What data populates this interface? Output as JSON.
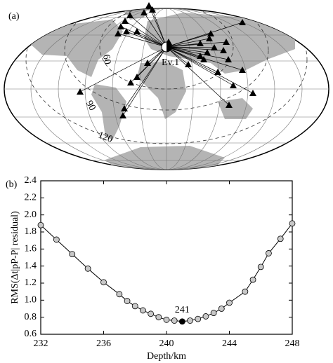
{
  "chart_data": [
    {
      "type": "map",
      "label": "(a)",
      "event": "Ev.1",
      "distance_labels": [
        60,
        90,
        120
      ]
    },
    {
      "type": "line",
      "label": "(b)",
      "xlabel": "Depth/km",
      "ylabel": "RMS(Δt|pP-P| residual)",
      "x": [
        232,
        233,
        234,
        235,
        236,
        237,
        237.5,
        238,
        238.5,
        239,
        239.5,
        240,
        240.5,
        241,
        241.5,
        242,
        242.5,
        243,
        243.5,
        244,
        245,
        245.5,
        246,
        246.5,
        247.25,
        248
      ],
      "values": [
        1.88,
        1.71,
        1.54,
        1.37,
        1.21,
        1.07,
        0.99,
        0.93,
        0.88,
        0.84,
        0.8,
        0.77,
        0.76,
        0.75,
        0.76,
        0.78,
        0.81,
        0.85,
        0.9,
        0.97,
        1.1,
        1.24,
        1.39,
        1.55,
        1.72,
        1.9
      ],
      "color": "#c8c8c8",
      "highlight_color": "#000000",
      "annotation": "241",
      "xlim": [
        232,
        248
      ],
      "xticks": [
        232,
        236,
        240,
        244,
        248
      ],
      "ylim": [
        0.6,
        2.4
      ],
      "yticks": [
        0.6,
        0.8,
        {
          "value": 1.0,
          "label": "1.0"
        },
        1.2,
        1.4,
        1.6,
        1.8,
        {
          "value": 2.0,
          "label": "2.0"
        },
        2.2,
        2.4
      ]
    }
  ]
}
